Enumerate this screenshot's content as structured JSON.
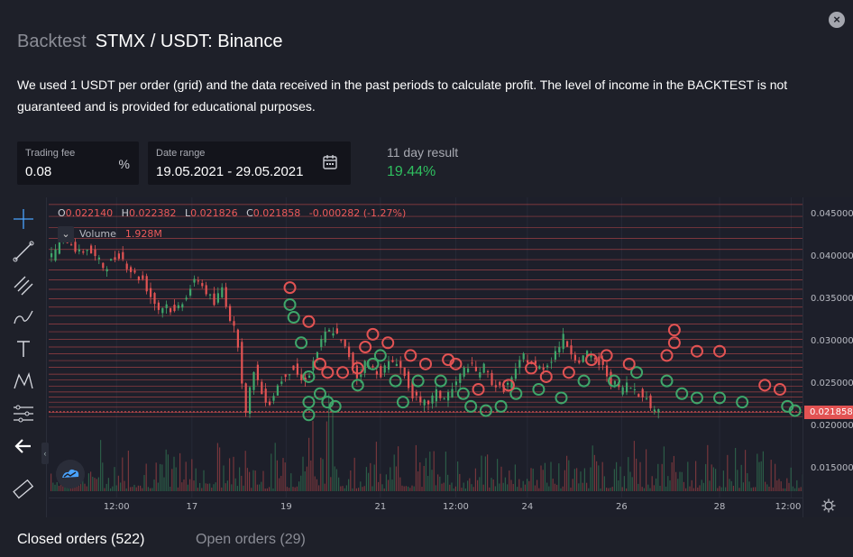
{
  "header": {
    "kicker": "Backtest",
    "pair": "STMX / USDT: Binance",
    "close_icon": "close-icon"
  },
  "description": "We used 1 USDT per order (grid) and the data received in the past periods to calculate profit. The level of income in the BACKTEST is not guaranteed and is provided for educational purposes.",
  "fields": {
    "fee_label": "Trading fee",
    "fee_value": "0.08",
    "fee_unit": "%",
    "range_label": "Date range",
    "range_value": "19.05.2021 - 29.05.2021",
    "calendar_icon": "calendar-icon"
  },
  "result": {
    "label": "11 day result",
    "value": "19.44%",
    "color": "#2fbf5f"
  },
  "chart_legend": {
    "o_key": "O",
    "o_val": "0.022140",
    "h_key": "H",
    "h_val": "0.022382",
    "l_key": "L",
    "l_val": "0.021826",
    "c_key": "C",
    "c_val": "0.021858",
    "change": "-0.000282 (-1.27%)",
    "volume_label": "Volume",
    "volume_value": "1.928M"
  },
  "toolbar_icons": [
    "crosshair-icon",
    "trendline-icon",
    "fib-icon",
    "brush-icon",
    "text-icon",
    "pattern-icon",
    "measure-icon",
    "back-arrow-icon",
    "ruler-icon"
  ],
  "colors": {
    "up": "#3fa66a",
    "down": "#e25353",
    "grid_line": "#e25353",
    "bg": "#1e2029",
    "chart_bg": "#1d1f2a"
  },
  "chart_data": {
    "type": "line",
    "title": "STMX / USDT: Binance",
    "ylim": [
      0.0125,
      0.0465
    ],
    "y_ticks": [
      "0.045000",
      "0.040000",
      "0.035000",
      "0.030000",
      "0.025000",
      "0.020000",
      "0.015000"
    ],
    "y_tick_values": [
      0.045,
      0.04,
      0.035,
      0.03,
      0.025,
      0.02,
      0.015
    ],
    "x_ticks": [
      "12:00",
      "17",
      "19",
      "21",
      "12:00",
      "24",
      "26",
      "28",
      "12:00"
    ],
    "x_tick_pos": [
      0.09,
      0.19,
      0.315,
      0.44,
      0.54,
      0.635,
      0.76,
      0.89,
      0.985
    ],
    "last_price": "0.021858",
    "last_price_value": 0.021858,
    "grid_levels": [
      0.0213,
      0.0218,
      0.0224,
      0.023,
      0.0236,
      0.0242,
      0.0249,
      0.0256,
      0.0263,
      0.0271,
      0.0279,
      0.0287,
      0.0295,
      0.0304,
      0.0313,
      0.0322,
      0.0332,
      0.0342,
      0.0352,
      0.0363,
      0.0374,
      0.0386,
      0.0398,
      0.041,
      0.0423,
      0.0436,
      0.0449,
      0.0463
    ],
    "price_series": [
      0.0395,
      0.041,
      0.0425,
      0.0418,
      0.0405,
      0.0412,
      0.04,
      0.039,
      0.0395,
      0.0405,
      0.0392,
      0.038,
      0.0375,
      0.0355,
      0.034,
      0.0345,
      0.0335,
      0.035,
      0.0365,
      0.0375,
      0.036,
      0.0345,
      0.0365,
      0.033,
      0.03,
      0.0215,
      0.027,
      0.024,
      0.023,
      0.025,
      0.0265,
      0.027,
      0.0255,
      0.0265,
      0.029,
      0.031,
      0.0315,
      0.03,
      0.0285,
      0.026,
      0.0275,
      0.027,
      0.0265,
      0.0275,
      0.028,
      0.026,
      0.024,
      0.0225,
      0.023,
      0.024,
      0.0235,
      0.0245,
      0.026,
      0.0275,
      0.0265,
      0.027,
      0.0255,
      0.0245,
      0.025,
      0.0265,
      0.0285,
      0.0275,
      0.027,
      0.0275,
      0.029,
      0.0305,
      0.029,
      0.028,
      0.0285,
      0.028,
      0.027,
      0.0255,
      0.0245,
      0.025,
      0.0245,
      0.024,
      0.0225,
      0.0219
    ],
    "buy_markers": [
      [
        0.32,
        0.0345
      ],
      [
        0.325,
        0.033
      ],
      [
        0.335,
        0.03
      ],
      [
        0.345,
        0.026
      ],
      [
        0.345,
        0.023
      ],
      [
        0.345,
        0.0215
      ],
      [
        0.36,
        0.024
      ],
      [
        0.37,
        0.023
      ],
      [
        0.38,
        0.0225
      ],
      [
        0.41,
        0.025
      ],
      [
        0.43,
        0.0275
      ],
      [
        0.44,
        0.0285
      ],
      [
        0.46,
        0.0255
      ],
      [
        0.47,
        0.023
      ],
      [
        0.49,
        0.0255
      ],
      [
        0.52,
        0.0255
      ],
      [
        0.55,
        0.024
      ],
      [
        0.56,
        0.0225
      ],
      [
        0.58,
        0.022
      ],
      [
        0.6,
        0.0225
      ],
      [
        0.62,
        0.024
      ],
      [
        0.65,
        0.0245
      ],
      [
        0.68,
        0.0235
      ],
      [
        0.71,
        0.0255
      ],
      [
        0.75,
        0.0255
      ],
      [
        0.78,
        0.0265
      ],
      [
        0.82,
        0.0255
      ],
      [
        0.84,
        0.024
      ],
      [
        0.86,
        0.0235
      ],
      [
        0.89,
        0.0235
      ],
      [
        0.92,
        0.023
      ],
      [
        0.98,
        0.0225
      ],
      [
        0.99,
        0.022
      ]
    ],
    "sell_markers": [
      [
        0.32,
        0.0365
      ],
      [
        0.345,
        0.0325
      ],
      [
        0.36,
        0.0275
      ],
      [
        0.37,
        0.0265
      ],
      [
        0.39,
        0.0265
      ],
      [
        0.41,
        0.027
      ],
      [
        0.42,
        0.0295
      ],
      [
        0.43,
        0.031
      ],
      [
        0.45,
        0.03
      ],
      [
        0.48,
        0.0285
      ],
      [
        0.5,
        0.0275
      ],
      [
        0.53,
        0.028
      ],
      [
        0.54,
        0.0275
      ],
      [
        0.57,
        0.0245
      ],
      [
        0.61,
        0.025
      ],
      [
        0.64,
        0.027
      ],
      [
        0.66,
        0.026
      ],
      [
        0.69,
        0.0265
      ],
      [
        0.72,
        0.028
      ],
      [
        0.74,
        0.0285
      ],
      [
        0.77,
        0.0275
      ],
      [
        0.82,
        0.0285
      ],
      [
        0.83,
        0.03
      ],
      [
        0.83,
        0.0315
      ],
      [
        0.86,
        0.029
      ],
      [
        0.89,
        0.029
      ],
      [
        0.95,
        0.025
      ],
      [
        0.97,
        0.0245
      ]
    ]
  },
  "tabs": {
    "closed": "Closed orders (522)",
    "open": "Open orders (29)"
  }
}
